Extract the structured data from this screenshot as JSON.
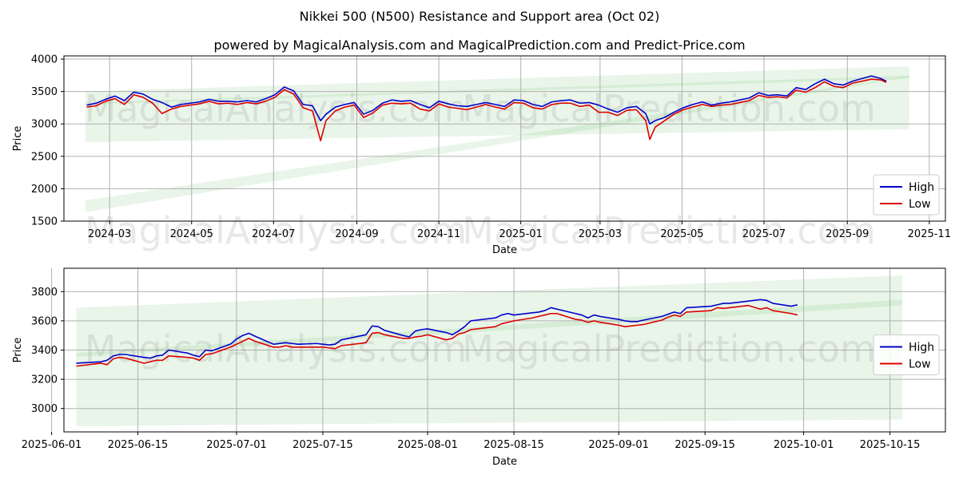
{
  "figure": {
    "title": "Nikkei 500 (N500) Resistance and Support area (Oct 02)",
    "subtitle": "powered by MagicalAnalysis.com and MagicalPrediction.com and Predict-Price.com",
    "watermarks": [
      "MagicalAnalysis.com",
      "MagicalPrediction.com"
    ]
  },
  "colors": {
    "high": "#0000cc",
    "low": "#dd0000",
    "band": "#7fc97f",
    "grid": "#b0b0b0"
  },
  "chart_data": [
    {
      "type": "line",
      "name": "overview",
      "xlabel": "Date",
      "ylabel": "Price",
      "xlim": [
        "2024-01-27",
        "2025-11-13"
      ],
      "ylim": [
        1500,
        4050
      ],
      "xticks": [
        "2024-03-01",
        "2024-05-01",
        "2024-07-01",
        "2024-09-01",
        "2024-11-01",
        "2025-01-01",
        "2025-03-01",
        "2025-05-01",
        "2025-07-01",
        "2025-09-01",
        "2025-11-01"
      ],
      "xtick_labels": [
        "2024-03",
        "2024-05",
        "2024-07",
        "2024-09",
        "2024-11",
        "2025-01",
        "2025-03",
        "2025-05",
        "2025-07",
        "2025-09",
        "2025-11"
      ],
      "yticks": [
        1500,
        2000,
        2500,
        3000,
        3500,
        4000
      ],
      "legend": {
        "position": "lower-right",
        "entries": [
          "High",
          "Low"
        ]
      },
      "bands": [
        {
          "name": "resistance-support-band-wide",
          "x": [
            "2024-02-12",
            "2025-10-17"
          ],
          "upper": [
            3500,
            3890
          ],
          "lower": [
            2720,
            2920
          ]
        },
        {
          "name": "resistance-support-band-lower",
          "x": [
            "2024-02-12",
            "2025-10-17"
          ],
          "upper": [
            1820,
            3740
          ],
          "lower": [
            1640,
            3720
          ]
        },
        {
          "name": "resistance-support-band-upper",
          "x": [
            "2024-02-12",
            "2025-10-17"
          ],
          "upper": [
            3330,
            3745
          ],
          "lower": [
            3300,
            3705
          ]
        }
      ],
      "series": [
        {
          "name": "High",
          "x": [
            "2024-02-13",
            "2024-02-20",
            "2024-02-27",
            "2024-03-05",
            "2024-03-12",
            "2024-03-19",
            "2024-03-26",
            "2024-04-02",
            "2024-04-09",
            "2024-04-16",
            "2024-04-23",
            "2024-04-30",
            "2024-05-07",
            "2024-05-14",
            "2024-05-21",
            "2024-05-28",
            "2024-06-04",
            "2024-06-11",
            "2024-06-18",
            "2024-06-25",
            "2024-07-02",
            "2024-07-09",
            "2024-07-16",
            "2024-07-23",
            "2024-07-30",
            "2024-08-05",
            "2024-08-09",
            "2024-08-16",
            "2024-08-23",
            "2024-08-30",
            "2024-09-06",
            "2024-09-13",
            "2024-09-20",
            "2024-09-27",
            "2024-10-04",
            "2024-10-11",
            "2024-10-18",
            "2024-10-25",
            "2024-11-01",
            "2024-11-08",
            "2024-11-15",
            "2024-11-22",
            "2024-11-29",
            "2024-12-06",
            "2024-12-13",
            "2024-12-20",
            "2024-12-27",
            "2025-01-03",
            "2025-01-10",
            "2025-01-17",
            "2025-01-24",
            "2025-01-31",
            "2025-02-07",
            "2025-02-14",
            "2025-02-21",
            "2025-02-28",
            "2025-03-07",
            "2025-03-14",
            "2025-03-21",
            "2025-03-28",
            "2025-04-04",
            "2025-04-07",
            "2025-04-11",
            "2025-04-18",
            "2025-04-25",
            "2025-05-02",
            "2025-05-09",
            "2025-05-16",
            "2025-05-23",
            "2025-05-30",
            "2025-06-06",
            "2025-06-13",
            "2025-06-20",
            "2025-06-27",
            "2025-07-04",
            "2025-07-11",
            "2025-07-18",
            "2025-07-25",
            "2025-08-01",
            "2025-08-08",
            "2025-08-15",
            "2025-08-22",
            "2025-08-29",
            "2025-09-05",
            "2025-09-12",
            "2025-09-19",
            "2025-09-26",
            "2025-09-30"
          ],
          "values": [
            3290,
            3320,
            3380,
            3430,
            3360,
            3490,
            3460,
            3380,
            3330,
            3260,
            3300,
            3320,
            3340,
            3380,
            3350,
            3350,
            3340,
            3360,
            3340,
            3390,
            3450,
            3570,
            3510,
            3300,
            3280,
            3050,
            3150,
            3260,
            3300,
            3330,
            3150,
            3210,
            3320,
            3370,
            3350,
            3360,
            3300,
            3250,
            3350,
            3310,
            3280,
            3270,
            3300,
            3330,
            3300,
            3270,
            3370,
            3360,
            3300,
            3270,
            3340,
            3360,
            3370,
            3320,
            3330,
            3290,
            3230,
            3180,
            3250,
            3270,
            3160,
            3000,
            3050,
            3100,
            3180,
            3250,
            3300,
            3340,
            3290,
            3320,
            3340,
            3370,
            3400,
            3480,
            3440,
            3450,
            3430,
            3560,
            3530,
            3620,
            3690,
            3620,
            3600,
            3660,
            3700,
            3740,
            3700,
            3660
          ]
        },
        {
          "name": "Low",
          "x": [
            "2024-02-13",
            "2024-02-20",
            "2024-02-27",
            "2024-03-05",
            "2024-03-12",
            "2024-03-19",
            "2024-03-26",
            "2024-04-02",
            "2024-04-09",
            "2024-04-16",
            "2024-04-23",
            "2024-04-30",
            "2024-05-07",
            "2024-05-14",
            "2024-05-21",
            "2024-05-28",
            "2024-06-04",
            "2024-06-11",
            "2024-06-18",
            "2024-06-25",
            "2024-07-02",
            "2024-07-09",
            "2024-07-16",
            "2024-07-23",
            "2024-07-30",
            "2024-08-05",
            "2024-08-09",
            "2024-08-16",
            "2024-08-23",
            "2024-08-30",
            "2024-09-06",
            "2024-09-13",
            "2024-09-20",
            "2024-09-27",
            "2024-10-04",
            "2024-10-11",
            "2024-10-18",
            "2024-10-25",
            "2024-11-01",
            "2024-11-08",
            "2024-11-15",
            "2024-11-22",
            "2024-11-29",
            "2024-12-06",
            "2024-12-13",
            "2024-12-20",
            "2024-12-27",
            "2025-01-03",
            "2025-01-10",
            "2025-01-17",
            "2025-01-24",
            "2025-01-31",
            "2025-02-07",
            "2025-02-14",
            "2025-02-21",
            "2025-02-28",
            "2025-03-07",
            "2025-03-14",
            "2025-03-21",
            "2025-03-28",
            "2025-04-04",
            "2025-04-07",
            "2025-04-11",
            "2025-04-18",
            "2025-04-25",
            "2025-05-02",
            "2025-05-09",
            "2025-05-16",
            "2025-05-23",
            "2025-05-30",
            "2025-06-06",
            "2025-06-13",
            "2025-06-20",
            "2025-06-27",
            "2025-07-04",
            "2025-07-11",
            "2025-07-18",
            "2025-07-25",
            "2025-08-01",
            "2025-08-08",
            "2025-08-15",
            "2025-08-22",
            "2025-08-29",
            "2025-09-05",
            "2025-09-12",
            "2025-09-19",
            "2025-09-26",
            "2025-09-30"
          ],
          "values": [
            3260,
            3280,
            3350,
            3390,
            3300,
            3450,
            3410,
            3320,
            3160,
            3230,
            3270,
            3290,
            3310,
            3350,
            3310,
            3320,
            3300,
            3330,
            3310,
            3350,
            3410,
            3530,
            3460,
            3250,
            3200,
            2740,
            3050,
            3200,
            3260,
            3290,
            3100,
            3170,
            3290,
            3320,
            3310,
            3320,
            3230,
            3200,
            3310,
            3260,
            3240,
            3220,
            3260,
            3300,
            3260,
            3230,
            3330,
            3320,
            3250,
            3230,
            3300,
            3320,
            3320,
            3270,
            3290,
            3180,
            3180,
            3130,
            3210,
            3220,
            3050,
            2760,
            2950,
            3050,
            3150,
            3220,
            3260,
            3300,
            3270,
            3290,
            3300,
            3330,
            3360,
            3440,
            3410,
            3420,
            3400,
            3520,
            3490,
            3560,
            3650,
            3580,
            3560,
            3630,
            3660,
            3690,
            3680,
            3640
          ]
        }
      ]
    },
    {
      "type": "line",
      "name": "zoom",
      "xlabel": "Date",
      "ylabel": "Price",
      "xlim": [
        "2025-06-03",
        "2025-10-24"
      ],
      "ylim": [
        2840,
        3960
      ],
      "xticks": [
        "2025-06-01",
        "2025-06-15",
        "2025-07-01",
        "2025-07-15",
        "2025-08-01",
        "2025-08-15",
        "2025-09-01",
        "2025-09-15",
        "2025-10-01",
        "2025-10-15"
      ],
      "xtick_labels": [
        "2025-06-01",
        "2025-06-15",
        "2025-07-01",
        "2025-07-15",
        "2025-08-01",
        "2025-08-15",
        "2025-09-01",
        "2025-09-15",
        "2025-10-01",
        "2025-10-15"
      ],
      "yticks": [
        3000,
        3200,
        3400,
        3600,
        3800
      ],
      "legend": {
        "position": "center-right",
        "entries": [
          "High",
          "Low"
        ]
      },
      "bands": [
        {
          "name": "resistance-support-band-wide",
          "x": [
            "2025-06-05",
            "2025-10-17"
          ],
          "upper": [
            3690,
            3910
          ],
          "lower": [
            2880,
            2925
          ]
        },
        {
          "name": "resistance-support-band-lower",
          "x": [
            "2025-06-05",
            "2025-10-17"
          ],
          "upper": [
            3380,
            3745
          ],
          "lower": [
            3355,
            3705
          ]
        }
      ],
      "series": [
        {
          "name": "High",
          "x": [
            "2025-06-05",
            "2025-06-09",
            "2025-06-10",
            "2025-06-11",
            "2025-06-12",
            "2025-06-13",
            "2025-06-16",
            "2025-06-17",
            "2025-06-18",
            "2025-06-19",
            "2025-06-20",
            "2025-06-23",
            "2025-06-24",
            "2025-06-25",
            "2025-06-26",
            "2025-06-27",
            "2025-06-30",
            "2025-07-01",
            "2025-07-02",
            "2025-07-03",
            "2025-07-04",
            "2025-07-07",
            "2025-07-08",
            "2025-07-09",
            "2025-07-10",
            "2025-07-11",
            "2025-07-14",
            "2025-07-15",
            "2025-07-16",
            "2025-07-17",
            "2025-07-18",
            "2025-07-22",
            "2025-07-23",
            "2025-07-24",
            "2025-07-25",
            "2025-07-28",
            "2025-07-29",
            "2025-07-30",
            "2025-07-31",
            "2025-08-01",
            "2025-08-04",
            "2025-08-05",
            "2025-08-06",
            "2025-08-07",
            "2025-08-08",
            "2025-08-12",
            "2025-08-13",
            "2025-08-14",
            "2025-08-15",
            "2025-08-18",
            "2025-08-19",
            "2025-08-20",
            "2025-08-21",
            "2025-08-22",
            "2025-08-25",
            "2025-08-26",
            "2025-08-27",
            "2025-08-28",
            "2025-08-29",
            "2025-09-01",
            "2025-09-02",
            "2025-09-03",
            "2025-09-04",
            "2025-09-05",
            "2025-09-08",
            "2025-09-09",
            "2025-09-10",
            "2025-09-11",
            "2025-09-12",
            "2025-09-16",
            "2025-09-17",
            "2025-09-18",
            "2025-09-19",
            "2025-09-22",
            "2025-09-24",
            "2025-09-25",
            "2025-09-26",
            "2025-09-29",
            "2025-09-30"
          ],
          "values": [
            3310,
            3320,
            3330,
            3360,
            3370,
            3370,
            3350,
            3345,
            3360,
            3365,
            3400,
            3380,
            3365,
            3355,
            3400,
            3395,
            3440,
            3475,
            3500,
            3515,
            3495,
            3440,
            3445,
            3450,
            3445,
            3440,
            3445,
            3440,
            3435,
            3440,
            3470,
            3505,
            3565,
            3560,
            3535,
            3500,
            3490,
            3530,
            3540,
            3545,
            3520,
            3505,
            3530,
            3560,
            3600,
            3620,
            3640,
            3650,
            3640,
            3655,
            3660,
            3670,
            3690,
            3680,
            3650,
            3640,
            3620,
            3640,
            3630,
            3610,
            3600,
            3595,
            3595,
            3605,
            3630,
            3645,
            3660,
            3650,
            3690,
            3700,
            3710,
            3720,
            3720,
            3735,
            3745,
            3740,
            3720,
            3700,
            3710
          ]
        },
        {
          "name": "Low",
          "x": [
            "2025-06-05",
            "2025-06-09",
            "2025-06-10",
            "2025-06-11",
            "2025-06-12",
            "2025-06-13",
            "2025-06-16",
            "2025-06-17",
            "2025-06-18",
            "2025-06-19",
            "2025-06-20",
            "2025-06-23",
            "2025-06-24",
            "2025-06-25",
            "2025-06-26",
            "2025-06-27",
            "2025-06-30",
            "2025-07-01",
            "2025-07-02",
            "2025-07-03",
            "2025-07-04",
            "2025-07-07",
            "2025-07-08",
            "2025-07-09",
            "2025-07-10",
            "2025-07-11",
            "2025-07-14",
            "2025-07-15",
            "2025-07-16",
            "2025-07-17",
            "2025-07-18",
            "2025-07-22",
            "2025-07-23",
            "2025-07-24",
            "2025-07-25",
            "2025-07-28",
            "2025-07-29",
            "2025-07-30",
            "2025-07-31",
            "2025-08-01",
            "2025-08-04",
            "2025-08-05",
            "2025-08-06",
            "2025-08-07",
            "2025-08-08",
            "2025-08-12",
            "2025-08-13",
            "2025-08-14",
            "2025-08-15",
            "2025-08-18",
            "2025-08-19",
            "2025-08-20",
            "2025-08-21",
            "2025-08-22",
            "2025-08-25",
            "2025-08-26",
            "2025-08-27",
            "2025-08-28",
            "2025-08-29",
            "2025-09-01",
            "2025-09-02",
            "2025-09-03",
            "2025-09-04",
            "2025-09-05",
            "2025-09-08",
            "2025-09-09",
            "2025-09-10",
            "2025-09-11",
            "2025-09-12",
            "2025-09-16",
            "2025-09-17",
            "2025-09-18",
            "2025-09-19",
            "2025-09-22",
            "2025-09-24",
            "2025-09-25",
            "2025-09-26",
            "2025-09-29",
            "2025-09-30"
          ],
          "values": [
            3290,
            3310,
            3300,
            3340,
            3350,
            3345,
            3310,
            3320,
            3330,
            3330,
            3360,
            3350,
            3345,
            3330,
            3370,
            3375,
            3420,
            3440,
            3460,
            3480,
            3460,
            3420,
            3420,
            3430,
            3420,
            3420,
            3420,
            3420,
            3415,
            3410,
            3430,
            3450,
            3515,
            3520,
            3505,
            3480,
            3480,
            3490,
            3495,
            3505,
            3470,
            3480,
            3510,
            3520,
            3540,
            3560,
            3580,
            3590,
            3600,
            3620,
            3630,
            3640,
            3650,
            3650,
            3610,
            3605,
            3590,
            3600,
            3590,
            3570,
            3560,
            3565,
            3570,
            3575,
            3605,
            3625,
            3640,
            3630,
            3660,
            3670,
            3690,
            3685,
            3690,
            3705,
            3680,
            3690,
            3670,
            3650,
            3640
          ]
        }
      ]
    }
  ]
}
